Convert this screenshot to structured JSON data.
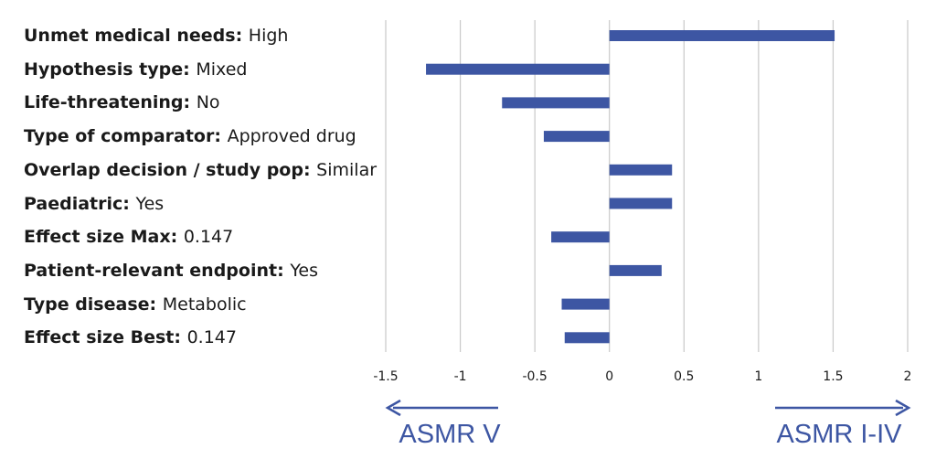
{
  "chart_data": {
    "type": "bar",
    "orientation": "horizontal",
    "categories": [
      {
        "name": "Unmet medical needs",
        "value_label": "High"
      },
      {
        "name": "Hypothesis type",
        "value_label": "Mixed"
      },
      {
        "name": "Life-threatening",
        "value_label": "No"
      },
      {
        "name": "Type of comparator",
        "value_label": "Approved drug"
      },
      {
        "name": "Overlap decision / study pop",
        "value_label": "Similar"
      },
      {
        "name": "Paediatric",
        "value_label": "Yes"
      },
      {
        "name": "Effect size Max",
        "value_label": "0.147"
      },
      {
        "name": "Patient-relevant endpoint",
        "value_label": "Yes"
      },
      {
        "name": "Type disease",
        "value_label": "Metabolic"
      },
      {
        "name": "Effect size Best",
        "value_label": "0.147"
      }
    ],
    "values": [
      1.51,
      -1.23,
      -0.72,
      -0.44,
      0.42,
      0.42,
      -0.39,
      0.35,
      -0.32,
      -0.3
    ],
    "xlim": [
      -1.5,
      2
    ],
    "xticks": [
      -1.5,
      -1,
      -0.5,
      0,
      0.5,
      1,
      1.5,
      2
    ],
    "xtick_labels": [
      "-1.5",
      "-1",
      "-0.5",
      "0",
      "0.5",
      "1",
      "1.5",
      "2"
    ],
    "grid": true,
    "bar_color": "#3d56a3",
    "grid_color": "#c8c8c8",
    "annotations": {
      "left": "ASMR V",
      "right": "ASMR I-IV"
    }
  }
}
